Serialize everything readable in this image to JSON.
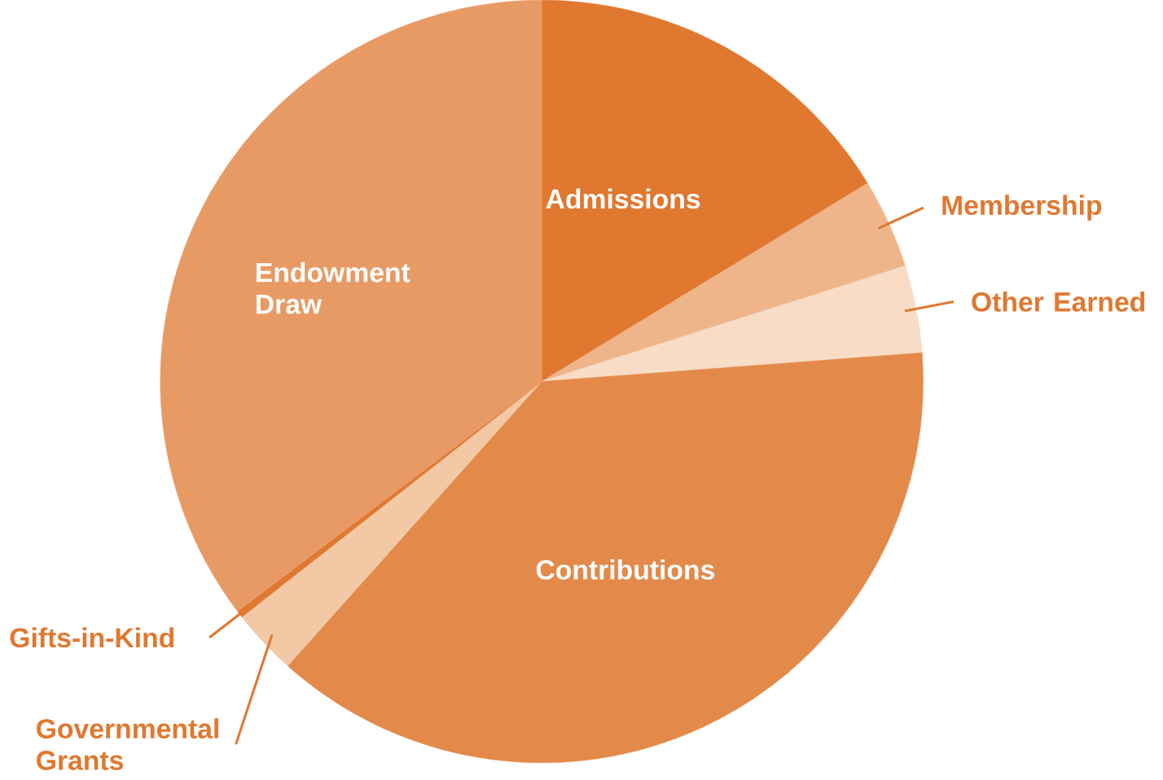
{
  "chart_data": {
    "type": "pie",
    "categories": [
      "Admissions",
      "Membership",
      "Other Earned",
      "Contributions",
      "Governmental Grants",
      "Gifts-in-Kind",
      "Endowment Draw"
    ],
    "values": [
      16.3,
      3.8,
      3.7,
      37.8,
      2.8,
      0.3,
      35.3
    ],
    "colors": [
      "#e07830",
      "#efb58a",
      "#f8dcc6",
      "#e38a4a",
      "#f3c8a5",
      "#e07830",
      "#e89a65"
    ]
  }
}
